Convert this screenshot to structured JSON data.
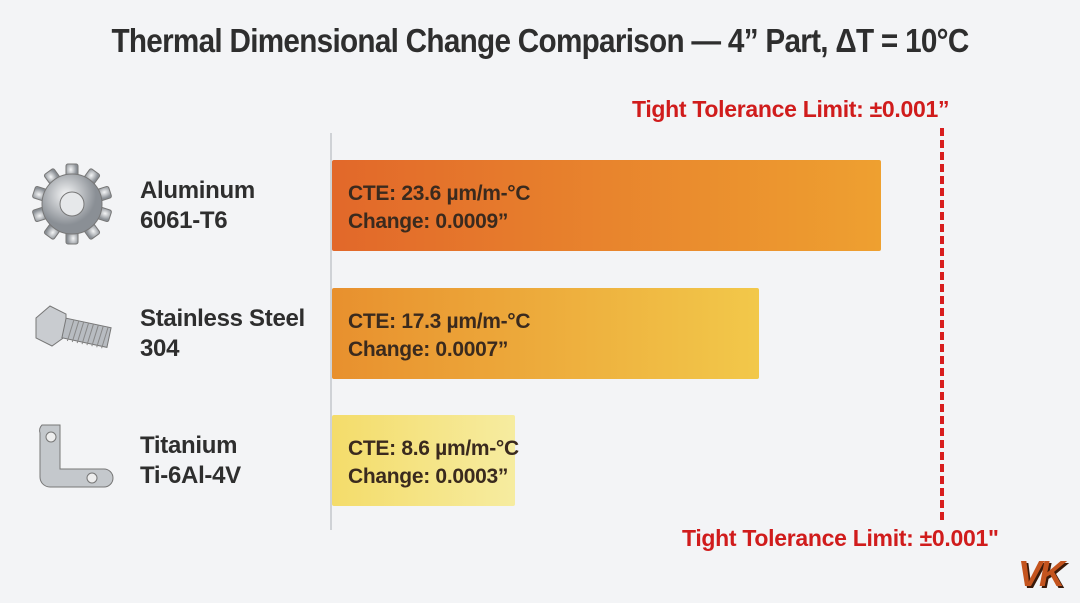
{
  "chart_data": {
    "type": "bar",
    "orientation": "horizontal",
    "title": "Thermal Dimensional Change Comparison — 4” Part, ΔT = 10°C",
    "categories": [
      {
        "name": "Aluminum",
        "grade": "6061-T6",
        "icon": "gear-icon"
      },
      {
        "name": "Stainless Steel",
        "grade": "304",
        "icon": "bolt-icon"
      },
      {
        "name": "Titanium",
        "grade": "Ti-6Al-4V",
        "icon": "bracket-icon"
      }
    ],
    "values": [
      0.0009,
      0.0007,
      0.0003
    ],
    "units": "in",
    "labels": [
      {
        "cte": "CTE: 23.6 µm/m-°C",
        "change": "Change: 0.0009”"
      },
      {
        "cte": "CTE: 17.3 µm/m-°C",
        "change": "Change: 0.0007”"
      },
      {
        "cte": "CTE: 8.6 µm/m-°C",
        "change": "Change: 0.0003”"
      }
    ],
    "colors": [
      [
        "#e2682a",
        "#eea030"
      ],
      [
        "#e8902e",
        "#f2c84a"
      ],
      [
        "#f4dc6a",
        "#f6eca0"
      ]
    ],
    "xlim": [
      0,
      0.00105
    ],
    "grid": false,
    "reference_line": {
      "value": 0.001,
      "label_top": "Tight Tolerance Limit: ±0.001”",
      "label_bottom": "Tight Tolerance Limit: ±0.001\"",
      "color": "#d81e1e",
      "style": "dashed"
    }
  },
  "logo": {
    "text": "VK"
  }
}
